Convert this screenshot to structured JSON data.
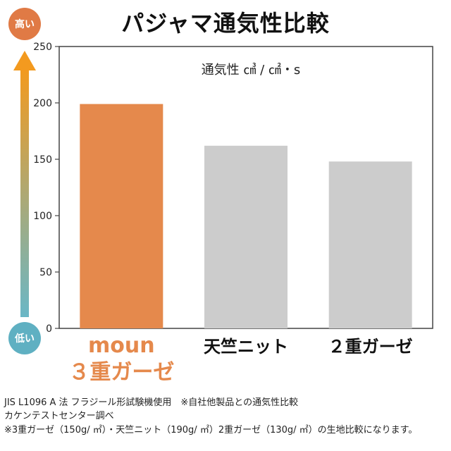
{
  "title": "パジャマ通気性比較",
  "scale_labels": {
    "high": "高い",
    "low": "低い"
  },
  "colors": {
    "highlight": "#E5894C",
    "neutral": "#CCCCCC",
    "arrow_top": "#F39A1F",
    "arrow_bottom": "#6AB7C6",
    "badge_high": "#E07A45",
    "badge_low": "#5FB0C2",
    "highlight_text": "#E5894C"
  },
  "chart_data": {
    "type": "bar",
    "title": "",
    "unit_label": "通気性 ㎤ / ㎠・s",
    "ylim": [
      0,
      250
    ],
    "yticks": [
      0,
      50,
      100,
      150,
      200,
      250
    ],
    "grid": false,
    "categories": [
      {
        "lines": [
          "moun",
          "３重ガーゼ"
        ],
        "highlight": true
      },
      {
        "lines": [
          "天竺ニット"
        ],
        "highlight": false
      },
      {
        "lines": [
          "２重ガーゼ"
        ],
        "highlight": false
      }
    ],
    "values": [
      199,
      162,
      148
    ]
  },
  "footnotes": [
    "JIS L1096 A 法 フラジール形試験機使用　※自社他製品との通気性比較",
    "カケンテストセンター調べ",
    "※3重ガーゼ（150g/ ㎡）・天竺ニット（190g/ ㎡）2重ガーゼ（130g/ ㎡）の生地比較になります。"
  ]
}
